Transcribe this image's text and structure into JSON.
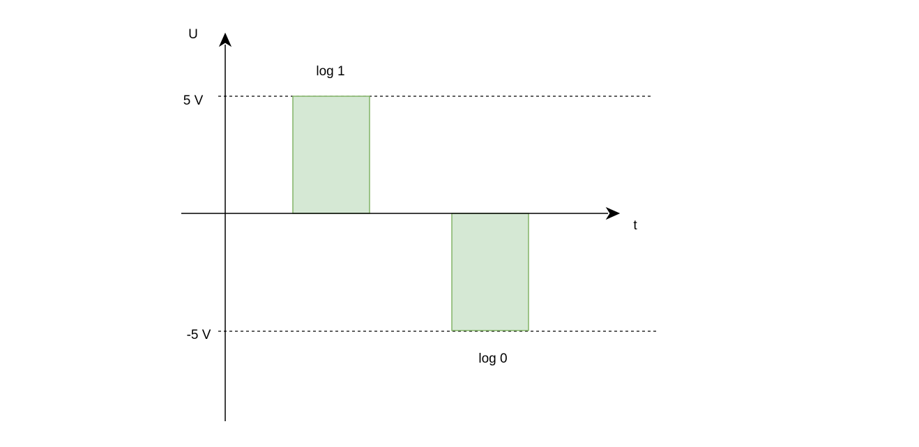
{
  "diagram": {
    "axes": {
      "y_label": "U",
      "x_label": "t"
    },
    "levels": {
      "high_label": "5 V",
      "low_label": "-5 V"
    },
    "pulses": {
      "high_label": "log 1",
      "low_label": "log 0"
    },
    "colors": {
      "pulse_fill": "#d5e8d4",
      "pulse_stroke": "#82b366",
      "axis": "#000000",
      "reference_line": "#000000"
    }
  }
}
